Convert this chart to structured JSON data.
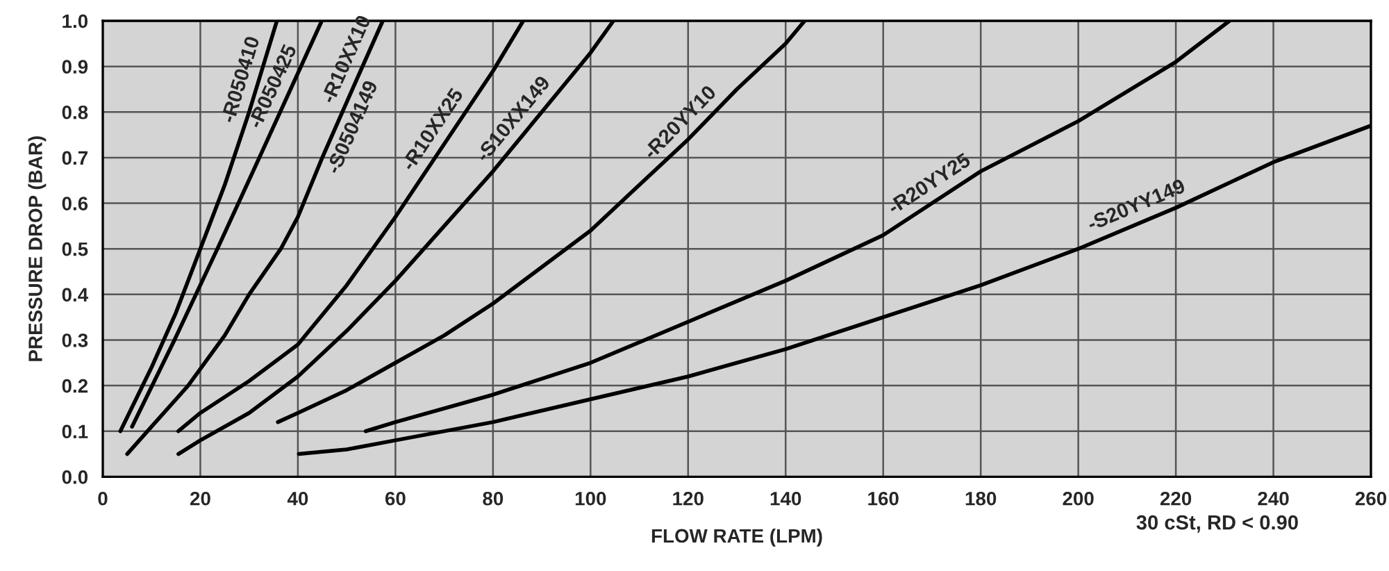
{
  "chart_data": {
    "type": "line",
    "xlabel": "FLOW RATE (LPM)",
    "ylabel": "PRESSURE DROP (BAR)",
    "xlim": [
      0,
      260
    ],
    "xticks": [
      0,
      20,
      40,
      60,
      80,
      100,
      120,
      140,
      160,
      180,
      200,
      220,
      240,
      260
    ],
    "ylim": [
      0.0,
      1.0
    ],
    "yticks": [
      {
        "value": 0,
        "label": "0.0"
      },
      0.1,
      0.2,
      0.3,
      0.4,
      0.5,
      0.6,
      0.7,
      0.8,
      0.9,
      {
        "value": 1,
        "label": "1.0"
      }
    ],
    "grid": true,
    "marker": "none",
    "line_style": "solid",
    "series": [
      {
        "color": "#000000",
        "x": [
          3.6,
          10,
          15,
          20,
          25,
          30,
          35.7
        ],
        "values": [
          0.1,
          0.24,
          0.36,
          0.5,
          0.64,
          0.8,
          1.0
        ]
      },
      {
        "color": "#000000",
        "x": [
          6,
          14.7,
          23.5,
          32.1,
          44.9
        ],
        "values": [
          0.11,
          0.3,
          0.5,
          0.7,
          1.0
        ]
      },
      {
        "color": "#000000",
        "x": [
          5,
          10,
          17.5,
          25,
          30,
          36.5,
          40,
          45,
          52,
          57.4
        ],
        "values": [
          0.05,
          0.11,
          0.2,
          0.31,
          0.4,
          0.5,
          0.57,
          0.7,
          0.87,
          1.0
        ]
      },
      {
        "color": "#000000",
        "x": [
          15.5,
          20,
          30,
          40,
          50,
          60,
          70,
          80,
          86.2
        ],
        "values": [
          0.1,
          0.14,
          0.21,
          0.29,
          0.42,
          0.57,
          0.73,
          0.89,
          1.0
        ]
      },
      {
        "color": "#000000",
        "x": [
          15.5,
          20,
          30,
          40,
          50,
          60,
          70,
          80,
          90,
          100,
          104.7
        ],
        "values": [
          0.05,
          0.08,
          0.14,
          0.22,
          0.32,
          0.43,
          0.55,
          0.67,
          0.8,
          0.93,
          1.0
        ]
      },
      {
        "color": "#000000",
        "x": [
          35.9,
          40,
          50,
          60,
          70,
          80,
          90,
          100,
          110,
          120,
          130,
          140,
          143.9
        ],
        "values": [
          0.12,
          0.14,
          0.19,
          0.25,
          0.31,
          0.38,
          0.46,
          0.54,
          0.64,
          0.74,
          0.85,
          0.95,
          1.0
        ]
      },
      {
        "color": "#000000",
        "x": [
          53.9,
          60,
          80,
          100,
          120,
          140,
          160,
          180,
          200,
          220,
          231
        ],
        "values": [
          0.1,
          0.12,
          0.18,
          0.25,
          0.34,
          0.43,
          0.53,
          0.67,
          0.78,
          0.91,
          1.0
        ]
      },
      {
        "color": "#000000",
        "x": [
          40.2,
          50,
          60,
          80,
          100,
          120,
          140,
          160,
          180,
          200,
          220,
          240,
          260
        ],
        "values": [
          0.05,
          0.06,
          0.08,
          0.12,
          0.17,
          0.22,
          0.28,
          0.35,
          0.42,
          0.5,
          0.59,
          0.69,
          0.77
        ]
      }
    ],
    "annotations": [
      {
        "text": "-R050410",
        "x": 31.7,
        "y": 0.86
      },
      {
        "text": "-R050425",
        "x": 38.1,
        "y": 0.84
      },
      {
        "text": "-R10XX10",
        "x": 53.2,
        "y": 0.9
      },
      {
        "text": "-S0504149",
        "x": 48.3,
        "y": 0.78
      },
      {
        "text": "-R10XX25",
        "x": 70.6,
        "y": 0.74
      },
      {
        "text": "-S10XX149",
        "x": 86.9,
        "y": 0.76
      },
      {
        "text": "-R20YY10",
        "x": 120.9,
        "y": 0.75
      },
      {
        "text": "-R20YY25",
        "x": 171.4,
        "y": 0.61
      },
      {
        "text": "-S20YY149",
        "x": 213.3,
        "y": 0.56
      },
      "30 cSt, RD < 0.90"
    ]
  }
}
